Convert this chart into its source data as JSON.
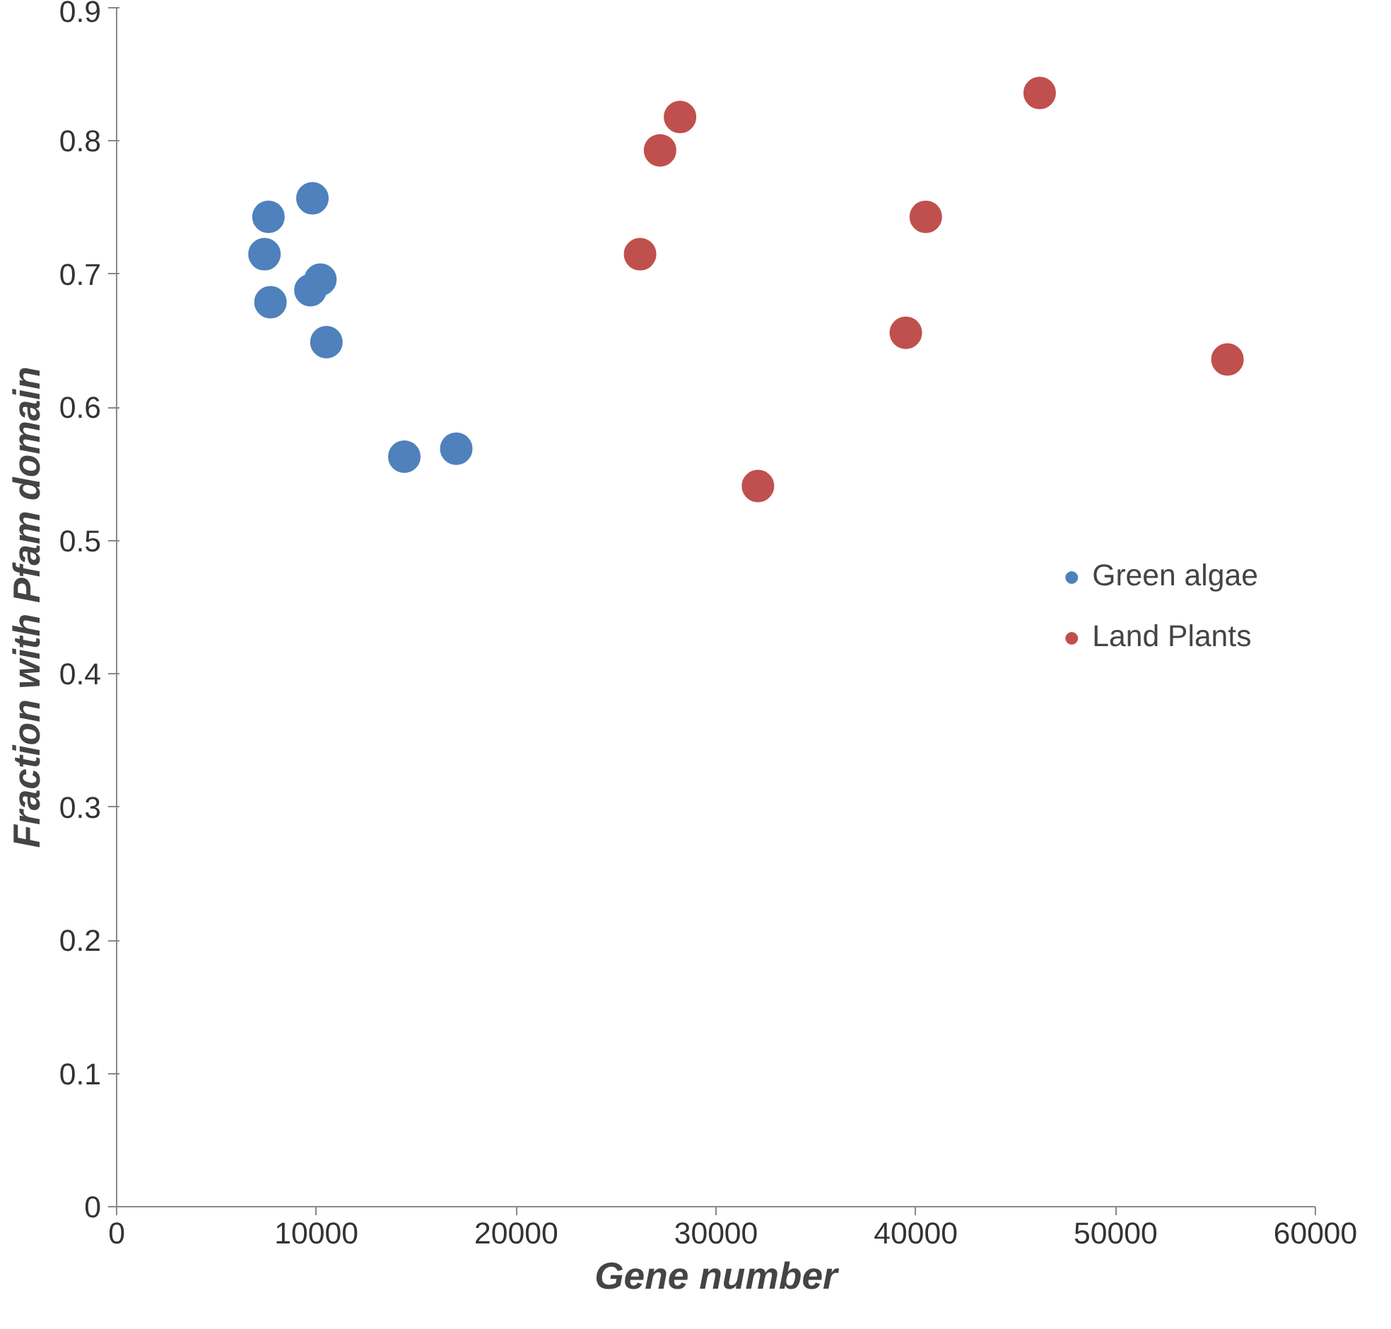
{
  "chart_data": {
    "type": "scatter",
    "xlabel": "Gene number",
    "ylabel": "Fraction with Pfam domain",
    "xlim": [
      0,
      60000
    ],
    "xticks": [
      0,
      10000,
      20000,
      30000,
      40000,
      50000,
      60000
    ],
    "ylim": [
      0,
      0.9
    ],
    "yticks": [
      0,
      0.1,
      0.2,
      0.3,
      0.4,
      0.5,
      0.6,
      0.7,
      0.8,
      0.9
    ],
    "grid": false,
    "legend": "right",
    "marker": "circle",
    "series": [
      {
        "name": "Green algae",
        "color": "#4f81bd",
        "x": [
          7600,
          7400,
          7700,
          9800,
          9700,
          10200,
          10500,
          14400,
          17000
        ],
        "values": [
          0.743,
          0.715,
          0.679,
          0.757,
          0.688,
          0.696,
          0.649,
          0.563,
          0.569
        ]
      },
      {
        "name": "Land Plants",
        "color": "#c0504d",
        "x": [
          28200,
          27200,
          26200,
          32100,
          46200,
          40500,
          39500,
          55600
        ],
        "values": [
          0.818,
          0.793,
          0.715,
          0.541,
          0.836,
          0.743,
          0.656,
          0.636
        ]
      }
    ]
  }
}
